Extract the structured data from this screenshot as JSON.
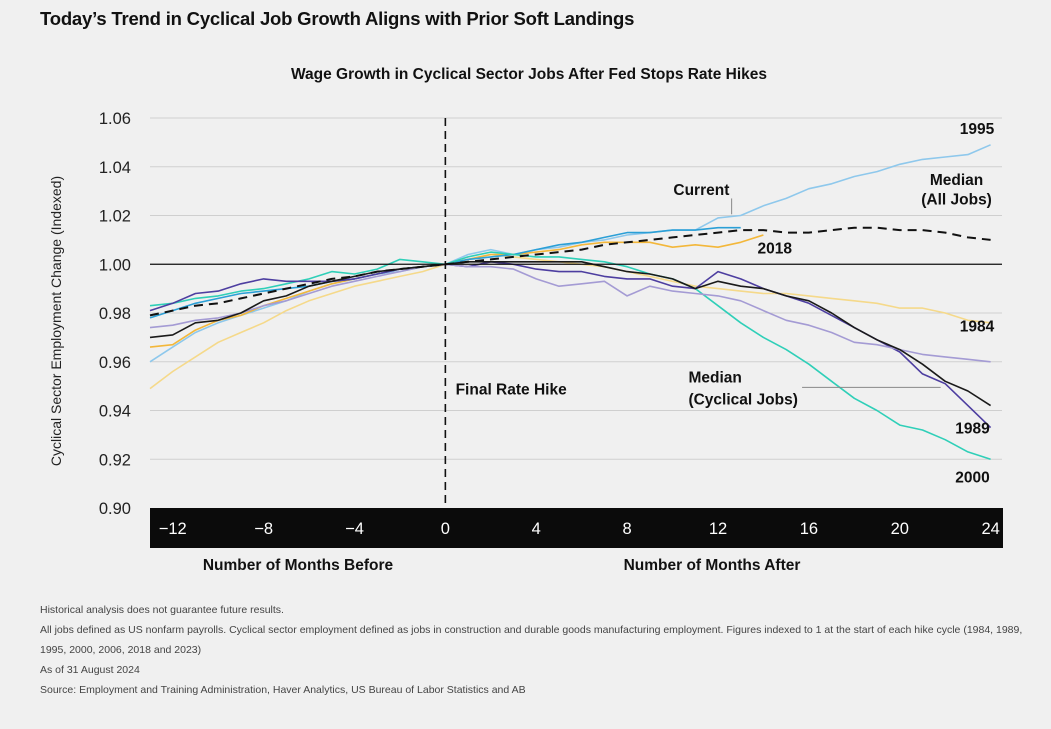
{
  "page": {
    "title": "Today’s Trend in Cyclical Job Growth Aligns with Prior Soft Landings"
  },
  "chart_data": {
    "type": "line",
    "title": "Wage Growth in Cyclical Sector Jobs After Fed Stops Rate Hikes",
    "ylabel": "Cyclical Sector Employment Change (Indexed)",
    "xlabel_left": "Number of Months Before",
    "xlabel_right": "Number of Months After",
    "xlim": [
      -13,
      24.5
    ],
    "ylim": [
      0.9,
      1.06
    ],
    "x_ticks": [
      -12,
      -8,
      -4,
      0,
      4,
      8,
      12,
      16,
      20,
      24
    ],
    "x_tick_labels": [
      "−12",
      "−8",
      "−4",
      "0",
      "4",
      "8",
      "12",
      "16",
      "20",
      "24"
    ],
    "y_ticks": [
      0.9,
      0.92,
      0.94,
      0.96,
      0.98,
      1.0,
      1.02,
      1.04,
      1.06
    ],
    "y_tick_labels": [
      "0.90",
      "0.92",
      "0.94",
      "0.96",
      "0.98",
      "1.00",
      "1.02",
      "1.04",
      "1.06"
    ],
    "reference_line_y": 1.0,
    "vline_x": 0,
    "vline_label": "Final Rate Hike",
    "grid": "horizontal",
    "colors": {
      "c1995": "#8ec8ec",
      "c1984": "#f5d98a",
      "c2018": "#f3b73a",
      "current": "#2b9fd6",
      "c2000": "#2fcfb8",
      "c1989": "#4d3ea0",
      "c1989b": "#a49bd4",
      "median_cyc": "#1a1a1a",
      "median_all": "#111111"
    },
    "series": [
      {
        "name": "1995",
        "color": "#8ec8ec",
        "x": [
          -13,
          -12,
          -11,
          -10,
          -9,
          -8,
          -7,
          -6,
          -5,
          -4,
          -3,
          -2,
          -1,
          0,
          1,
          2,
          3,
          4,
          5,
          6,
          7,
          8,
          9,
          10,
          11,
          12,
          13,
          14,
          15,
          16,
          17,
          18,
          19,
          20,
          21,
          22,
          23,
          24
        ],
        "y": [
          0.96,
          0.966,
          0.972,
          0.976,
          0.979,
          0.982,
          0.985,
          0.989,
          0.992,
          0.994,
          0.996,
          0.997,
          0.999,
          1.0,
          1.004,
          1.006,
          1.004,
          1.006,
          1.007,
          1.009,
          1.01,
          1.012,
          1.013,
          1.014,
          1.014,
          1.019,
          1.02,
          1.024,
          1.027,
          1.031,
          1.033,
          1.036,
          1.038,
          1.041,
          1.043,
          1.044,
          1.045,
          1.049
        ]
      },
      {
        "name": "1984",
        "color": "#f5d98a",
        "x": [
          -13,
          -12,
          -11,
          -10,
          -9,
          -8,
          -7,
          -6,
          -5,
          -4,
          -3,
          -2,
          -1,
          0,
          1,
          2,
          3,
          4,
          5,
          6,
          7,
          8,
          9,
          10,
          11,
          12,
          13,
          14,
          15,
          16,
          17,
          18,
          19,
          20,
          21,
          22,
          23,
          24
        ],
        "y": [
          0.949,
          0.956,
          0.962,
          0.968,
          0.972,
          0.976,
          0.981,
          0.985,
          0.988,
          0.991,
          0.993,
          0.995,
          0.997,
          1.0,
          1.002,
          1.004,
          1.003,
          1.002,
          1.001,
          1.0,
          0.999,
          0.997,
          0.995,
          0.993,
          0.991,
          0.99,
          0.989,
          0.988,
          0.988,
          0.987,
          0.986,
          0.985,
          0.984,
          0.982,
          0.982,
          0.98,
          0.977,
          0.976
        ]
      },
      {
        "name": "2018",
        "color": "#f3b73a",
        "x": [
          -13,
          -12,
          -11,
          -10,
          -9,
          -8,
          -7,
          -6,
          -5,
          -4,
          -3,
          -2,
          -1,
          0,
          1,
          2,
          3,
          4,
          5,
          6,
          7,
          8,
          9,
          10,
          11,
          12,
          13,
          14
        ],
        "y": [
          0.966,
          0.967,
          0.973,
          0.977,
          0.979,
          0.983,
          0.986,
          0.989,
          0.992,
          0.994,
          0.996,
          0.998,
          0.999,
          1.0,
          1.002,
          1.004,
          1.004,
          1.005,
          1.006,
          1.008,
          1.009,
          1.009,
          1.009,
          1.007,
          1.008,
          1.007,
          1.009,
          1.012
        ]
      },
      {
        "name": "Current",
        "color": "#2b9fd6",
        "x": [
          -13,
          -12,
          -11,
          -10,
          -9,
          -8,
          -7,
          -6,
          -5,
          -4,
          -3,
          -2,
          -1,
          0,
          1,
          2,
          3,
          4,
          5,
          6,
          7,
          8,
          9,
          10,
          11,
          12,
          13
        ],
        "y": [
          0.978,
          0.981,
          0.984,
          0.986,
          0.988,
          0.989,
          0.99,
          0.991,
          0.993,
          0.994,
          0.996,
          0.998,
          0.999,
          1.0,
          1.002,
          1.003,
          1.004,
          1.006,
          1.008,
          1.009,
          1.011,
          1.013,
          1.013,
          1.014,
          1.014,
          1.015,
          1.015
        ]
      },
      {
        "name": "2000",
        "color": "#2fcfb8",
        "x": [
          -13,
          -12,
          -11,
          -10,
          -9,
          -8,
          -7,
          -6,
          -5,
          -4,
          -3,
          -2,
          -1,
          0,
          1,
          2,
          3,
          4,
          5,
          6,
          7,
          8,
          9,
          10,
          11,
          12,
          13,
          14,
          15,
          16,
          17,
          18,
          19,
          20,
          21,
          22,
          23,
          24
        ],
        "y": [
          0.983,
          0.984,
          0.986,
          0.987,
          0.989,
          0.99,
          0.992,
          0.994,
          0.997,
          0.996,
          0.998,
          1.002,
          1.001,
          1.0,
          1.003,
          1.005,
          1.004,
          1.003,
          1.003,
          1.002,
          1.001,
          0.999,
          0.996,
          0.994,
          0.99,
          0.983,
          0.976,
          0.97,
          0.965,
          0.959,
          0.952,
          0.945,
          0.94,
          0.934,
          0.932,
          0.928,
          0.923,
          0.92
        ]
      },
      {
        "name": "1989",
        "color": "#4d3ea0",
        "x": [
          -13,
          -12,
          -11,
          -10,
          -9,
          -8,
          -7,
          -6,
          -5,
          -4,
          -3,
          -2,
          -1,
          0,
          1,
          2,
          3,
          4,
          5,
          6,
          7,
          8,
          9,
          10,
          11,
          12,
          13,
          14,
          15,
          16,
          17,
          18,
          19,
          20,
          21,
          22,
          23,
          24
        ],
        "y": [
          0.981,
          0.984,
          0.988,
          0.989,
          0.992,
          0.994,
          0.993,
          0.993,
          0.993,
          0.994,
          0.996,
          0.998,
          0.999,
          1.0,
          0.999,
          1.001,
          1.0,
          0.998,
          0.997,
          0.997,
          0.995,
          0.994,
          0.994,
          0.991,
          0.99,
          0.997,
          0.994,
          0.99,
          0.987,
          0.984,
          0.979,
          0.974,
          0.969,
          0.964,
          0.955,
          0.951,
          0.942,
          0.933
        ]
      },
      {
        "name": "",
        "color": "#a49bd4",
        "x": [
          -13,
          -12,
          -11,
          -10,
          -9,
          -8,
          -7,
          -6,
          -5,
          -4,
          -3,
          -2,
          -1,
          0,
          1,
          2,
          3,
          4,
          5,
          6,
          7,
          8,
          9,
          10,
          11,
          12,
          13,
          14,
          15,
          16,
          17,
          18,
          19,
          20,
          21,
          22,
          23,
          24
        ],
        "y": [
          0.974,
          0.975,
          0.977,
          0.978,
          0.98,
          0.983,
          0.985,
          0.988,
          0.991,
          0.993,
          0.995,
          0.997,
          0.999,
          1.0,
          0.999,
          0.999,
          0.998,
          0.994,
          0.991,
          0.992,
          0.993,
          0.987,
          0.991,
          0.989,
          0.988,
          0.987,
          0.985,
          0.981,
          0.977,
          0.975,
          0.972,
          0.968,
          0.967,
          0.965,
          0.963,
          0.962,
          0.961,
          0.96
        ]
      },
      {
        "name": "Median (Cyclical Jobs)",
        "color": "#1a1a1a",
        "x": [
          -13,
          -12,
          -11,
          -10,
          -9,
          -8,
          -7,
          -6,
          -5,
          -4,
          -3,
          -2,
          -1,
          0,
          1,
          2,
          3,
          4,
          5,
          6,
          7,
          8,
          9,
          10,
          11,
          12,
          13,
          14,
          15,
          16,
          17,
          18,
          19,
          20,
          21,
          22,
          23,
          24
        ],
        "y": [
          0.97,
          0.971,
          0.976,
          0.977,
          0.98,
          0.985,
          0.987,
          0.991,
          0.993,
          0.995,
          0.997,
          0.998,
          0.999,
          1.0,
          1.001,
          1.001,
          1.001,
          1.001,
          1.001,
          1.001,
          0.999,
          0.997,
          0.996,
          0.994,
          0.99,
          0.993,
          0.991,
          0.99,
          0.987,
          0.985,
          0.98,
          0.974,
          0.969,
          0.965,
          0.959,
          0.952,
          0.948,
          0.942
        ]
      },
      {
        "name": "Median (All Jobs)",
        "color": "#111111",
        "dashed": true,
        "x": [
          -13,
          -12,
          -11,
          -10,
          -9,
          -8,
          -7,
          -6,
          -5,
          -4,
          -3,
          -2,
          -1,
          0,
          1,
          2,
          3,
          4,
          5,
          6,
          7,
          8,
          9,
          10,
          11,
          12,
          13,
          14,
          15,
          16,
          17,
          18,
          19,
          20,
          21,
          22,
          23,
          24
        ],
        "y": [
          0.979,
          0.981,
          0.983,
          0.984,
          0.986,
          0.988,
          0.99,
          0.992,
          0.994,
          0.995,
          0.997,
          0.998,
          0.999,
          1.0,
          1.001,
          1.002,
          1.003,
          1.004,
          1.005,
          1.006,
          1.008,
          1.009,
          1.01,
          1.011,
          1.012,
          1.013,
          1.014,
          1.014,
          1.013,
          1.013,
          1.014,
          1.015,
          1.015,
          1.014,
          1.014,
          1.013,
          1.011,
          1.01
        ]
      }
    ],
    "annotations": [
      {
        "text": "1995",
        "x": 23.4,
        "y": 1.0535,
        "anchor": "middle"
      },
      {
        "text": "Current",
        "x": 12.5,
        "y": 1.0285,
        "anchor": "end",
        "leader": [
          [
            12.6,
            1.027
          ],
          [
            12.6,
            1.0205
          ]
        ]
      },
      {
        "text": "Median",
        "x": 22.5,
        "y": 1.0325,
        "anchor": "middle"
      },
      {
        "text": "(All Jobs)",
        "x": 22.5,
        "y": 1.0245,
        "anchor": "middle"
      },
      {
        "text": "2018",
        "x": 14.5,
        "y": 1.0045,
        "anchor": "middle"
      },
      {
        "text": "1984",
        "x": 23.4,
        "y": 0.9725,
        "anchor": "middle"
      },
      {
        "text": "Median",
        "x": 10.7,
        "y": 0.9515,
        "anchor": "start"
      },
      {
        "text": "(Cyclical Jobs)",
        "x": 10.7,
        "y": 0.9425,
        "anchor": "start",
        "leader": [
          [
            15.7,
            0.9495
          ],
          [
            21.8,
            0.9495
          ]
        ]
      },
      {
        "text": "Final Rate Hike",
        "x": 0.45,
        "y": 0.9465,
        "anchor": "start"
      },
      {
        "text": "1989",
        "x": 23.2,
        "y": 0.9305,
        "anchor": "middle"
      },
      {
        "text": "2000",
        "x": 23.2,
        "y": 0.9105,
        "anchor": "middle"
      }
    ]
  },
  "footnotes": [
    "Historical analysis does not guarantee future results.",
    "All jobs defined as US nonfarm payrolls. Cyclical sector employment defined as jobs in construction and durable goods manufacturing employment. Figures indexed to 1 at the start of each hike cycle (1984, 1989, 1995, 2000, 2006, 2018 and 2023)",
    "As of 31 August 2024",
    "Source: Employment and Training Administration, Haver Analytics, US Bureau of Labor Statistics and AB"
  ]
}
